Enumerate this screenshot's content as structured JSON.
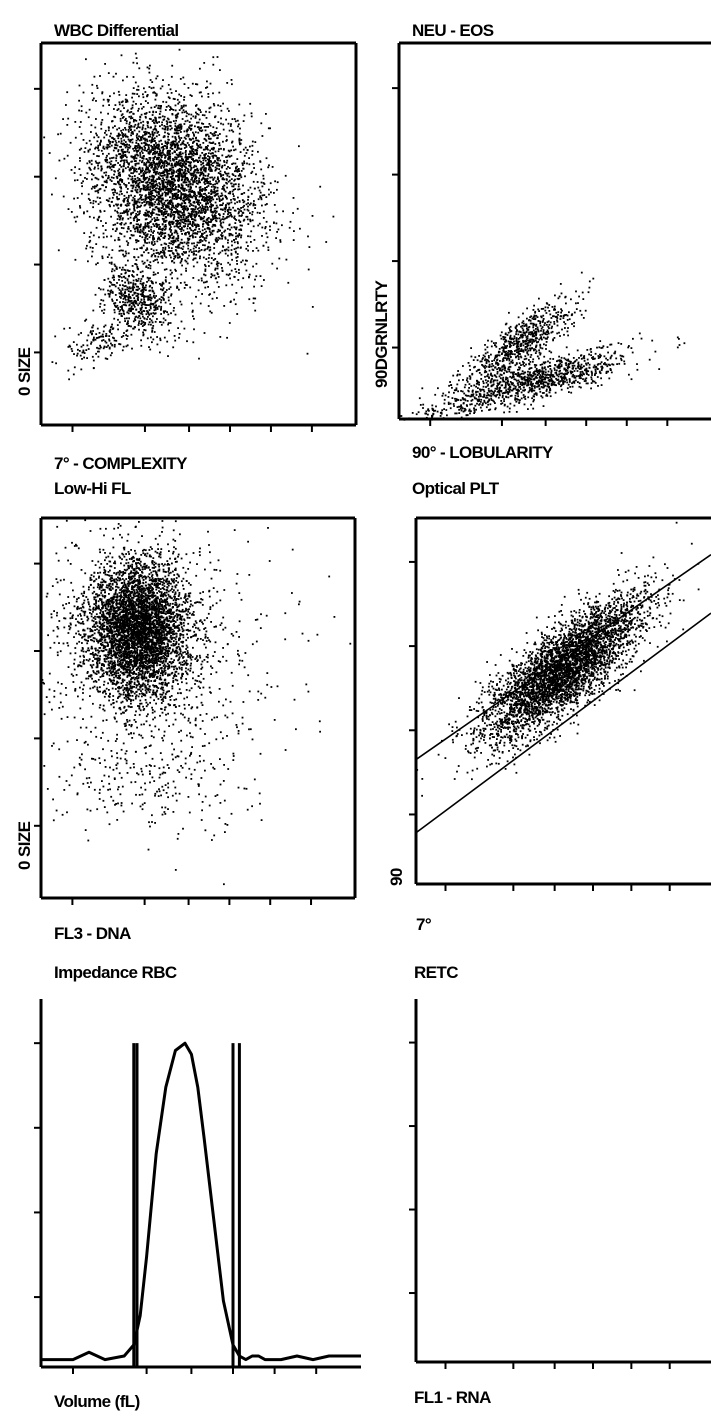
{
  "chart_data": [
    {
      "type": "scatter",
      "title": "WBC Differential",
      "xlabel": "7° - COMPLEXITY",
      "ylabel": "0 SIZE",
      "xlim": [
        0,
        100
      ],
      "ylim": [
        0,
        100
      ],
      "grid": false,
      "clusters": [
        {
          "center": [
            42,
            63
          ],
          "spread": [
            11,
            14
          ],
          "points": 4200,
          "rotation_deg": 60
        },
        {
          "center": [
            30,
            33
          ],
          "spread": [
            4,
            6
          ],
          "points": 500,
          "rotation_deg": 55
        },
        {
          "center": [
            18,
            22
          ],
          "spread": [
            5,
            3
          ],
          "points": 140,
          "rotation_deg": 20
        }
      ]
    },
    {
      "type": "scatter",
      "title": "NEU - EOS",
      "xlabel": "90° - LOBULARITY",
      "ylabel": "90DGRNLRTY",
      "xlim": [
        0,
        100
      ],
      "ylim": [
        0,
        100
      ],
      "grid": false,
      "clusters": [
        {
          "center": [
            38,
            20
          ],
          "spread": [
            10,
            3
          ],
          "points": 700,
          "rotation_deg": 32
        },
        {
          "center": [
            46,
            11
          ],
          "spread": [
            14,
            2.5
          ],
          "points": 900,
          "rotation_deg": 12
        },
        {
          "center": [
            18,
            3
          ],
          "spread": [
            9,
            1.5
          ],
          "points": 120,
          "rotation_deg": 10
        }
      ]
    },
    {
      "type": "scatter",
      "title": "Low-Hi FL",
      "xlabel": "FL3 - DNA",
      "ylabel": "0 SIZE",
      "xlim": [
        0,
        100
      ],
      "ylim": [
        0,
        100
      ],
      "grid": false,
      "clusters": [
        {
          "center": [
            31,
            71
          ],
          "spread": [
            8,
            9
          ],
          "points": 4300,
          "rotation_deg": 0
        },
        {
          "center": [
            32,
            60
          ],
          "spread": [
            22,
            18
          ],
          "points": 800,
          "rotation_deg": 0
        },
        {
          "center": [
            34,
            30
          ],
          "spread": [
            16,
            6
          ],
          "points": 150,
          "rotation_deg": 0
        }
      ]
    },
    {
      "type": "scatter",
      "title": "Optical PLT",
      "xlabel": "7°",
      "ylabel": "90",
      "xlim": [
        0,
        100
      ],
      "ylim": [
        0,
        100
      ],
      "grid": false,
      "clusters": [
        {
          "center": [
            50,
            59
          ],
          "spread": [
            16,
            5
          ],
          "points": 4000,
          "rotation_deg": 34
        }
      ],
      "lines": [
        {
          "x": [
            0,
            100
          ],
          "y": [
            34,
            90
          ]
        },
        {
          "x": [
            0,
            100
          ],
          "y": [
            14,
            74
          ]
        }
      ]
    },
    {
      "type": "line",
      "title": "Impedance RBC",
      "xlabel": "Volume (fL)",
      "ylabel": "",
      "xlim": [
        0,
        100
      ],
      "ylim": [
        0,
        100
      ],
      "grid": false,
      "x": [
        0,
        10,
        15,
        20,
        26,
        29,
        31,
        33,
        36,
        39,
        42,
        45,
        47,
        49,
        51,
        54,
        57,
        60,
        62,
        64,
        66,
        68,
        70,
        75,
        80,
        85,
        90,
        100
      ],
      "y": [
        2,
        2,
        4,
        2,
        3,
        6,
        14,
        30,
        58,
        76,
        86,
        88,
        85,
        76,
        62,
        40,
        18,
        6,
        3,
        2,
        3,
        3,
        2,
        2,
        3,
        2,
        3,
        3
      ],
      "markers": [
        {
          "x": 29,
          "y": 88
        },
        {
          "x": 30,
          "y": 88
        },
        {
          "x": 60,
          "y": 88
        },
        {
          "x": 62,
          "y": 88
        }
      ]
    },
    {
      "type": "scatter",
      "title": "RETC",
      "xlabel": "FL1 - RNA",
      "ylabel": "",
      "xlim": [
        0,
        100
      ],
      "ylim": [
        0,
        100
      ],
      "grid": false,
      "clusters": []
    }
  ]
}
